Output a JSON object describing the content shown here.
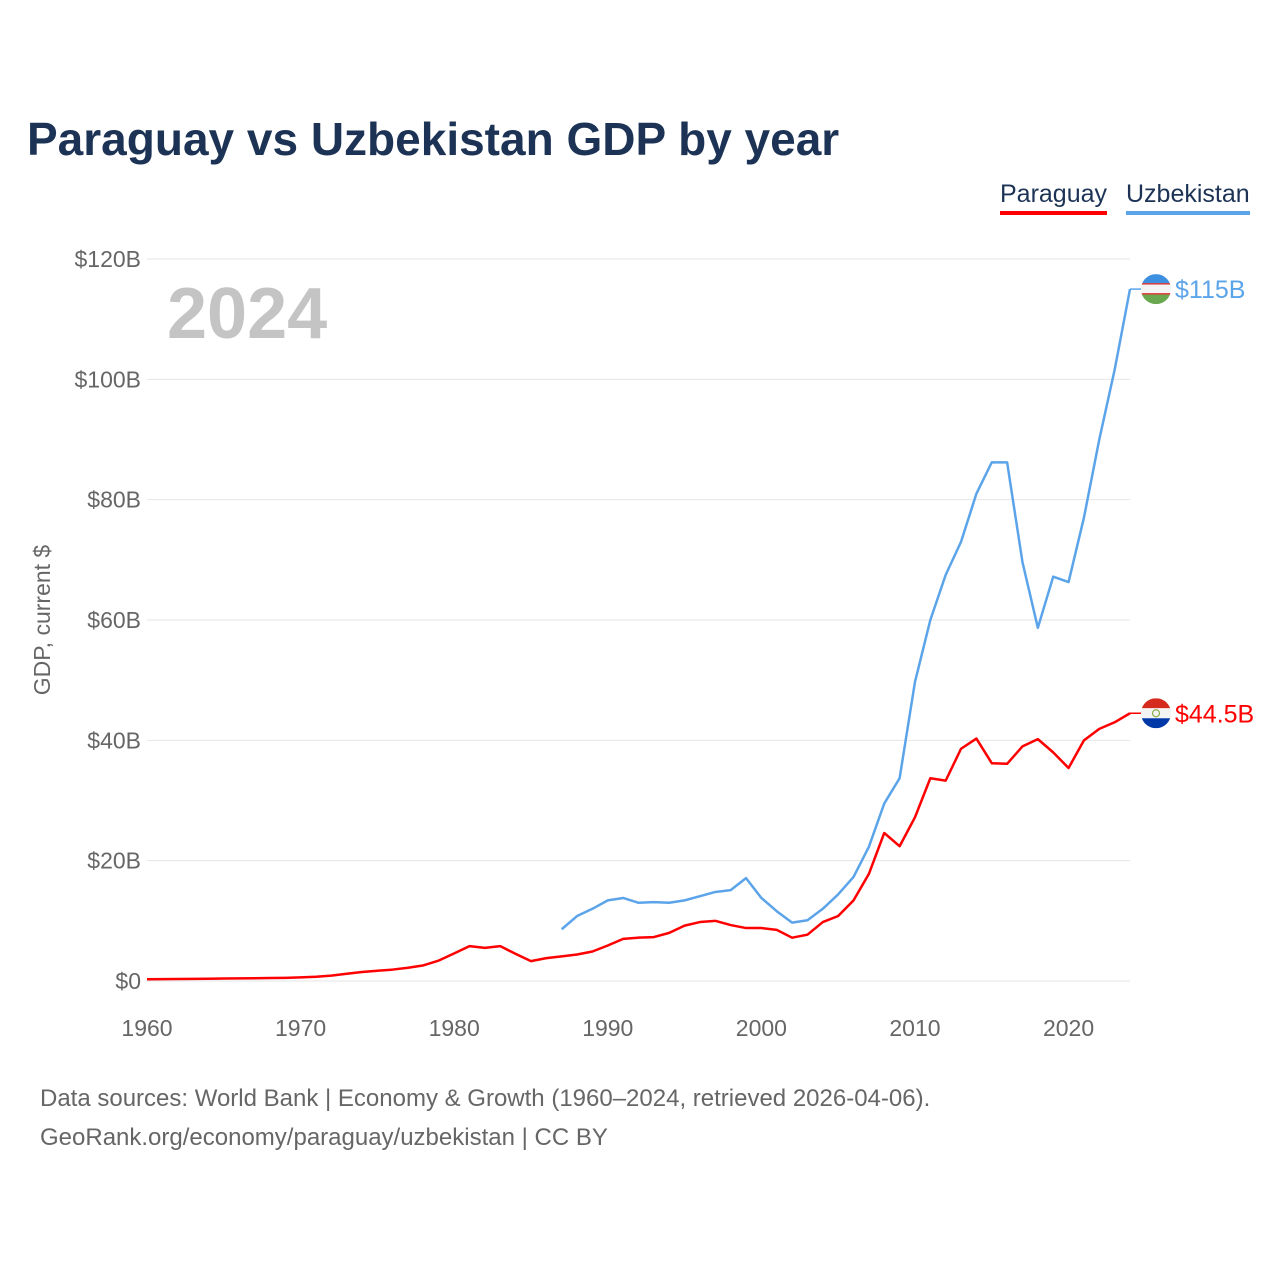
{
  "title": "Paraguay vs Uzbekistan GDP by year",
  "year_label": "2024",
  "footer": {
    "line1": "Data sources: World Bank | Economy & Growth (1960–2024, retrieved 2026-04-06).",
    "line2": "GeoRank.org/economy/paraguay/uzbekistan | CC BY"
  },
  "chart_data": {
    "type": "line",
    "title": "Paraguay vs Uzbekistan GDP by year",
    "xlabel": "",
    "ylabel": "GDP, current $",
    "xlim": [
      1960,
      2024
    ],
    "ylim": [
      0,
      120
    ],
    "x_ticks": [
      1960,
      1970,
      1980,
      1990,
      2000,
      2010,
      2020
    ],
    "y_ticks": [
      0,
      20,
      40,
      60,
      80,
      100,
      120
    ],
    "y_tick_labels": [
      "$0",
      "$20B",
      "$40B",
      "$60B",
      "$80B",
      "$100B",
      "$120B"
    ],
    "grid": true,
    "legend_position": "top-right",
    "series": [
      {
        "name": "Paraguay",
        "color": "#ff0000",
        "end_label": "$44.5B",
        "start_year": 1960,
        "values": [
          0.3,
          0.32,
          0.34,
          0.36,
          0.38,
          0.41,
          0.43,
          0.46,
          0.49,
          0.52,
          0.6,
          0.7,
          0.9,
          1.2,
          1.5,
          1.7,
          1.9,
          2.2,
          2.6,
          3.4,
          4.6,
          5.8,
          5.5,
          5.8,
          4.5,
          3.3,
          3.8,
          4.1,
          4.4,
          4.9,
          5.9,
          7.0,
          7.2,
          7.3,
          8.0,
          9.2,
          9.8,
          10.0,
          9.3,
          8.8,
          8.8,
          8.5,
          7.2,
          7.7,
          9.8,
          10.8,
          13.4,
          17.8,
          24.6,
          22.4,
          27.2,
          33.7,
          33.3,
          38.6,
          40.3,
          36.2,
          36.1,
          39.0,
          40.2,
          38.0,
          35.4,
          40.0,
          41.9,
          43.0,
          44.5
        ]
      },
      {
        "name": "Uzbekistan",
        "color": "#5ba4ea",
        "end_label": "$115B",
        "start_year": 1987,
        "values": [
          8.6,
          10.8,
          12.0,
          13.4,
          13.8,
          13.0,
          13.1,
          13.0,
          13.4,
          14.1,
          14.8,
          15.1,
          17.1,
          13.8,
          11.6,
          9.7,
          10.1,
          12.0,
          14.4,
          17.3,
          22.3,
          29.5,
          33.7,
          49.7,
          60.0,
          67.5,
          73.0,
          81.0,
          86.2,
          86.2,
          69.6,
          58.7,
          67.2,
          66.3,
          77.0,
          90.0,
          101.6,
          115.0
        ]
      }
    ]
  }
}
